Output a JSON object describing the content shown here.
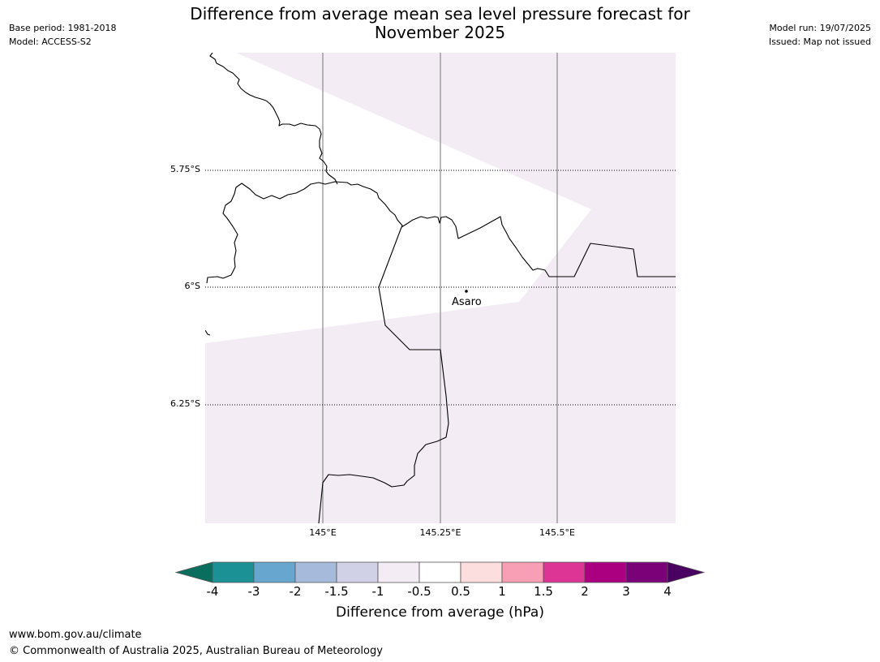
{
  "header": {
    "title_line1": "Difference from average mean sea level pressure forecast for",
    "title_line2": "November 2025",
    "base_period": "Base period: 1981-2018",
    "model": "Model: ACCESS-S2",
    "model_run": "Model run: 19/07/2025",
    "issued": "Issued: Map not issued"
  },
  "map": {
    "lat_labels": [
      "5.75°S",
      "6°S",
      "6.25°S"
    ],
    "lon_labels": [
      "145°E",
      "145.25°E",
      "145.5°E"
    ],
    "place_label": "Asaro",
    "colors": {
      "anomaly_fill": "#f3ecf5",
      "neutral_fill": "#ffffff"
    }
  },
  "colorbar": {
    "ticks": [
      "-4",
      "-3",
      "-2",
      "-1.5",
      "-1",
      "-0.5",
      "0.5",
      "1",
      "1.5",
      "2",
      "3",
      "4"
    ],
    "colors": [
      "#0a6e5e",
      "#1b9196",
      "#67a6ce",
      "#a6bbdb",
      "#d0d0e6",
      "#f3ecf5",
      "#ffffff",
      "#fddede",
      "#f99fb5",
      "#dc3596",
      "#ab0181",
      "#7a0177",
      "#4a0060"
    ],
    "label": "Difference from average (hPa)"
  },
  "footer": {
    "url": "www.bom.gov.au/climate",
    "copyright": "© Commonwealth of Australia 2025, Australian Bureau of Meteorology"
  }
}
